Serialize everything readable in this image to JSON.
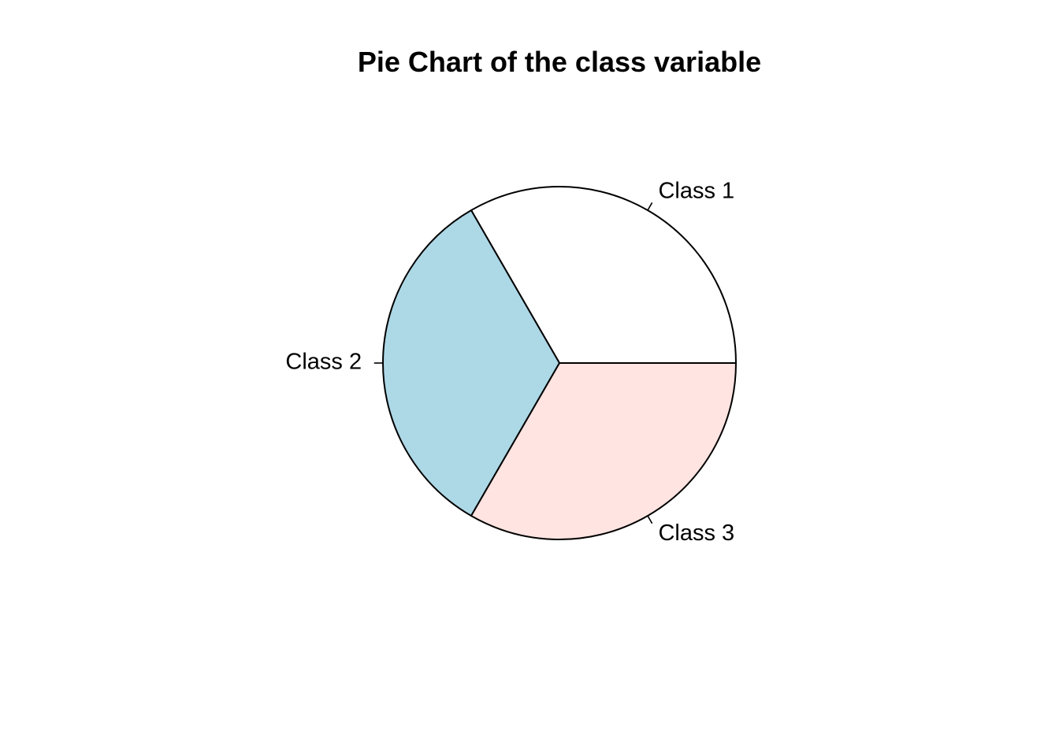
{
  "chart_data": {
    "type": "pie",
    "title": "Pie Chart of the class variable",
    "categories": [
      "Class 1",
      "Class 2",
      "Class 3"
    ],
    "values": [
      1,
      1,
      1
    ],
    "colors": [
      "#FFFFFF",
      "#ADD8E6",
      "#FFE4E1"
    ],
    "border_color": "#000000",
    "start_angle_deg": 0,
    "direction": "counterclockwise",
    "legend": "none"
  }
}
